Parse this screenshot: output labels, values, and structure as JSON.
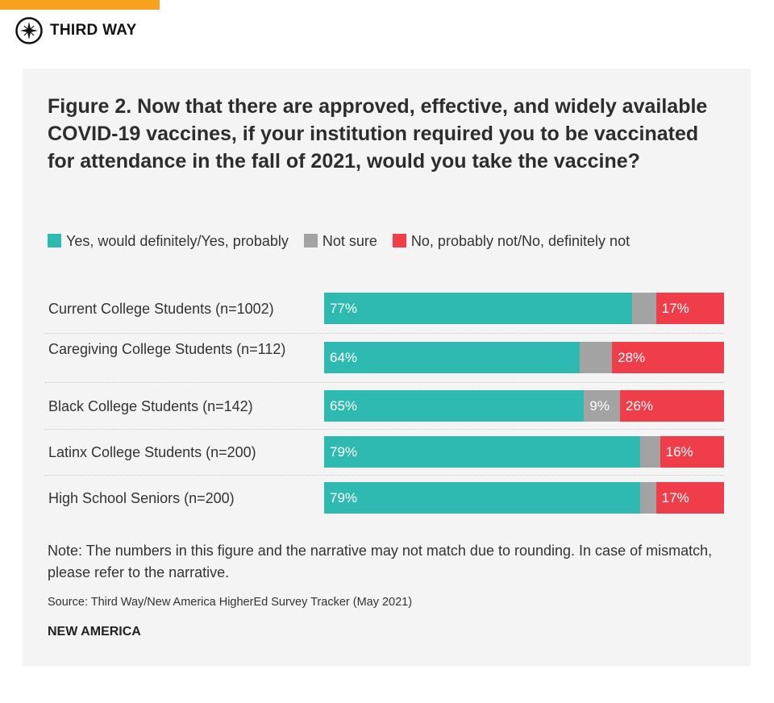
{
  "header": {
    "brand": "THIRD WAY",
    "icon": "compass-icon",
    "accent_color": "#f7a11e"
  },
  "footer": {
    "note": "Note: The numbers in this figure and the narrative may not match due to rounding. In case of mismatch, please refer to the narrative.",
    "source": "Source: Third Way/New America HigherEd Survey Tracker (May 2021)",
    "publisher": "NEW AMERICA"
  },
  "chart_data": {
    "type": "bar",
    "orientation": "horizontal-stacked",
    "title": "Figure 2. Now that there are approved, effective, and widely available COVID-19 vaccines, if your institution required you to be vaccinated for attendance in the fall of 2021, would you take the vaccine?",
    "legend_placement": "top",
    "categories": [
      "Current College Students (n=1002)",
      "Caregiving College Students (n=112)",
      "Black College Students (n=142)",
      "Latinx College Students (n=200)",
      "High School Seniors (n=200)"
    ],
    "series": [
      {
        "name": "Yes, would definitely/Yes, probably",
        "color": "#2ebab0",
        "values": [
          77,
          64,
          65,
          79,
          79
        ],
        "labels": [
          "77%",
          "64%",
          "65%",
          "79%",
          "79%"
        ]
      },
      {
        "name": "Not sure",
        "color": "#a3a3a3",
        "values": [
          6,
          8,
          9,
          5,
          4
        ],
        "labels": [
          "",
          "",
          "9%",
          "",
          ""
        ]
      },
      {
        "name": "No, probably not/No, definitely not",
        "color": "#ef3e4a",
        "values": [
          17,
          28,
          26,
          16,
          17
        ],
        "labels": [
          "17%",
          "28%",
          "26%",
          "16%",
          "17%"
        ]
      }
    ],
    "xlim": [
      0,
      100
    ],
    "grid": false
  }
}
